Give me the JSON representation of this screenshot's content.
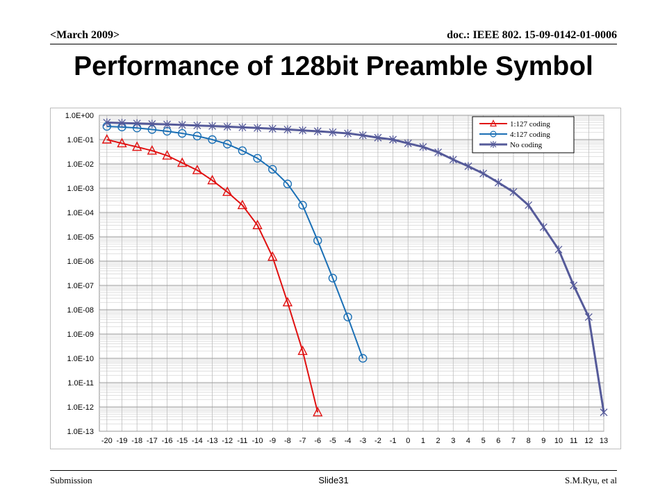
{
  "header": {
    "date": "<March 2009>",
    "doc": "doc.: IEEE 802. 15-09-0142-01-0006"
  },
  "slide_title": "Performance of 128bit  Preamble Symbol",
  "footer": {
    "left": "Submission",
    "center": "Slide31",
    "right": "S.M.Ryu, et al"
  },
  "chart_data": {
    "type": "line",
    "title": "",
    "xlabel": "",
    "ylabel": "",
    "y_scale": "log",
    "ylim": [
      1e-13,
      1
    ],
    "y_tick_labels": [
      "1.0E+00",
      "1.0E-01",
      "1.0E-02",
      "1.0E-03",
      "1.0E-04",
      "1.0E-05",
      "1.0E-06",
      "1.0E-07",
      "1.0E-08",
      "1.0E-09",
      "1.0E-10",
      "1.0E-11",
      "1.0E-12",
      "1.0E-13"
    ],
    "x_tick_labels": [
      "-20",
      "-19",
      "-18",
      "-17",
      "-16",
      "-15",
      "-14",
      "-13",
      "-12",
      "-11",
      "-10",
      "-9",
      "-8",
      "-7",
      "-6",
      "-5",
      "-4",
      "-3",
      "-2",
      "-1",
      "0",
      "1",
      "2",
      "3",
      "4",
      "5",
      "6",
      "7",
      "8",
      "9",
      "10",
      "11",
      "12",
      "13"
    ],
    "grid": true,
    "legend_position": "top-right",
    "series": [
      {
        "name": "1:127 coding",
        "color": "#e01010",
        "marker": "triangle",
        "x": [
          -20,
          -19,
          -18,
          -17,
          -16,
          -15,
          -14,
          -13,
          -12,
          -11,
          -10,
          -9,
          -8,
          -7,
          -6
        ],
        "y": [
          0.1,
          0.07,
          0.05,
          0.035,
          0.022,
          0.011,
          0.0055,
          0.0021,
          0.0007,
          0.0002,
          3e-05,
          1.5e-06,
          2e-08,
          2e-10,
          6e-13
        ]
      },
      {
        "name": "4:127 coding",
        "color": "#1a6fb5",
        "marker": "circle",
        "x": [
          -20,
          -19,
          -18,
          -17,
          -16,
          -15,
          -14,
          -13,
          -12,
          -11,
          -10,
          -9,
          -8,
          -7,
          -6,
          -5,
          -4,
          -3
        ],
        "y": [
          0.35,
          0.33,
          0.3,
          0.26,
          0.22,
          0.18,
          0.14,
          0.1,
          0.065,
          0.035,
          0.017,
          0.006,
          0.0015,
          0.0002,
          7e-06,
          2e-07,
          5e-09,
          1e-10
        ]
      },
      {
        "name": "No coding",
        "color": "#555a99",
        "marker": "asterisk",
        "x": [
          -20,
          -19,
          -18,
          -17,
          -16,
          -15,
          -14,
          -13,
          -12,
          -11,
          -10,
          -9,
          -8,
          -7,
          -6,
          -5,
          -4,
          -3,
          -2,
          -1,
          0,
          1,
          2,
          3,
          4,
          5,
          6,
          7,
          8,
          9,
          10,
          11,
          12,
          13
        ],
        "y": [
          0.5,
          0.48,
          0.46,
          0.44,
          0.42,
          0.4,
          0.38,
          0.36,
          0.34,
          0.32,
          0.3,
          0.28,
          0.26,
          0.24,
          0.22,
          0.2,
          0.18,
          0.15,
          0.12,
          0.1,
          0.07,
          0.05,
          0.03,
          0.015,
          0.008,
          0.004,
          0.0017,
          0.0007,
          0.0002,
          2.5e-05,
          3e-06,
          1e-07,
          5e-09,
          6e-13
        ]
      }
    ]
  }
}
